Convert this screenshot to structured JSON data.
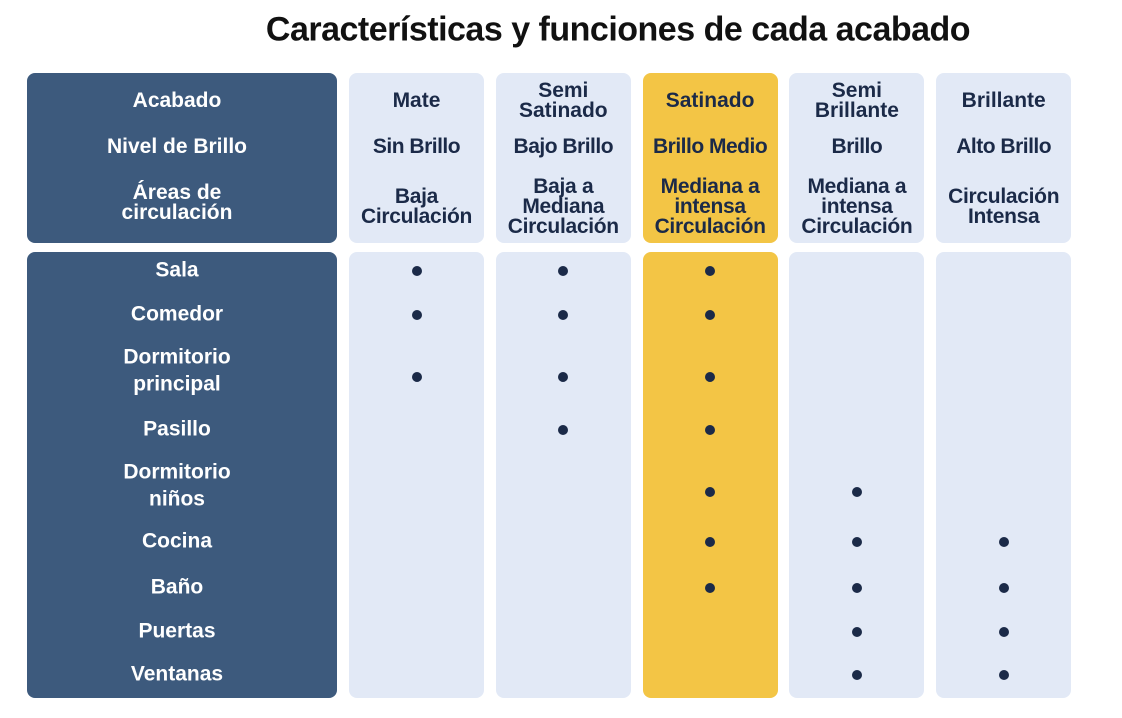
{
  "title": "Características y funciones de cada acabado",
  "header_labels": [
    "Acabado",
    "Nivel de Brillo",
    "Áreas de\ncirculación"
  ],
  "columns": [
    {
      "name": "Mate",
      "brillo": "Sin Brillo",
      "circulacion": "Baja\nCirculación",
      "color": "#e2e9f6"
    },
    {
      "name": "Semi\nSatinado",
      "brillo": "Bajo Brillo",
      "circulacion": "Baja  a\nMediana\nCirculación",
      "color": "#e2e9f6"
    },
    {
      "name": "Satinado",
      "brillo": "Brillo Medio",
      "circulacion": "Mediana a\nintensa\nCirculación",
      "color": "#f3c545"
    },
    {
      "name": "Semi\nBrillante",
      "brillo": "Brillo",
      "circulacion": "Mediana a\nintensa\nCirculación",
      "color": "#e2e9f6"
    },
    {
      "name": "Brillante",
      "brillo": "Alto Brillo",
      "circulacion": "Circulación\nIntensa",
      "color": "#e2e9f6"
    }
  ],
  "rows": [
    {
      "area": "Sala",
      "marks": [
        true,
        true,
        true,
        false,
        false
      ]
    },
    {
      "area": "Comedor",
      "marks": [
        true,
        true,
        true,
        false,
        false
      ]
    },
    {
      "area": "Dormitorio\nprincipal",
      "marks": [
        true,
        true,
        true,
        false,
        false
      ]
    },
    {
      "area": "Pasillo",
      "marks": [
        false,
        true,
        true,
        false,
        false
      ]
    },
    {
      "area": "Dormitorio\nniños",
      "marks": [
        false,
        false,
        true,
        true,
        false
      ]
    },
    {
      "area": "Cocina",
      "marks": [
        false,
        false,
        true,
        true,
        true
      ]
    },
    {
      "area": "Baño",
      "marks": [
        false,
        false,
        true,
        true,
        true
      ]
    },
    {
      "area": "Puertas",
      "marks": [
        false,
        false,
        false,
        true,
        true
      ]
    },
    {
      "area": "Ventanas",
      "marks": [
        false,
        false,
        false,
        true,
        true
      ]
    }
  ]
}
